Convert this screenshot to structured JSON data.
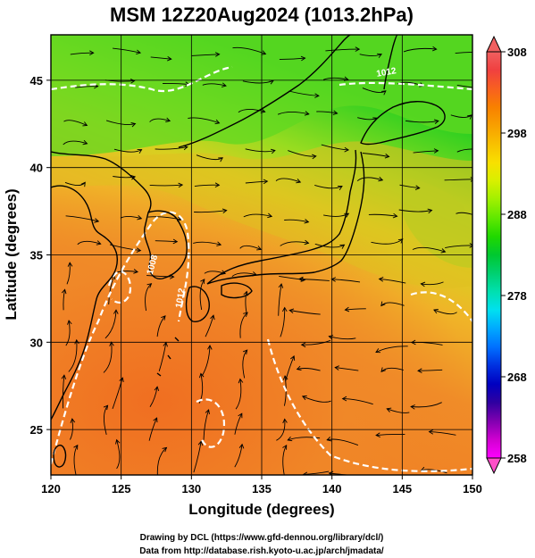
{
  "title": "MSM 12Z20Aug2024 (1013.2hPa)",
  "x_axis": {
    "label": "Longitude (degrees)",
    "range": [
      120,
      150
    ],
    "ticks": [
      {
        "v": 120,
        "t": "120"
      },
      {
        "v": 125,
        "t": "125"
      },
      {
        "v": 130,
        "t": "130"
      },
      {
        "v": 135,
        "t": "135"
      },
      {
        "v": 140,
        "t": "140"
      },
      {
        "v": 145,
        "t": "145"
      },
      {
        "v": 150,
        "t": "150"
      }
    ]
  },
  "y_axis": {
    "label": "Latitude  (degrees)",
    "range": [
      22.4,
      47.6
    ],
    "ticks": [
      {
        "v": 25,
        "t": "25"
      },
      {
        "v": 30,
        "t": "30"
      },
      {
        "v": 35,
        "t": "35"
      },
      {
        "v": 40,
        "t": "40"
      },
      {
        "v": 45,
        "t": "45"
      }
    ]
  },
  "colorbar": {
    "min": 258,
    "max": 308,
    "labels": [
      {
        "v": 308,
        "t": "308"
      },
      {
        "v": 298,
        "t": "298"
      },
      {
        "v": 288,
        "t": "288"
      },
      {
        "v": 278,
        "t": "278"
      },
      {
        "v": 268,
        "t": "268"
      },
      {
        "v": 258,
        "t": "258"
      }
    ],
    "stops": [
      "#ff00ff",
      "#d000d0",
      "#8000b0",
      "#3000a0",
      "#0000c0",
      "#0030e0",
      "#0070ff",
      "#00a8ff",
      "#00e0f0",
      "#00e0b0",
      "#00d070",
      "#00c830",
      "#20d800",
      "#60e800",
      "#a0f000",
      "#d8f000",
      "#f8e000",
      "#f8c000",
      "#f8a000",
      "#f88000",
      "#f86020",
      "#f04040",
      "#f06060"
    ],
    "low_arrow_color": "#ff50c8",
    "high_arrow_color": "#f06060"
  },
  "contour_labels": [
    {
      "text": "1008",
      "lon": 127.4,
      "lat": 34.4,
      "rot": -75
    },
    {
      "text": "1012",
      "lon": 129.4,
      "lat": 32.5,
      "rot": -80
    },
    {
      "text": "1012",
      "lon": 143.9,
      "lat": 45.3,
      "rot": -10
    }
  ],
  "credits": {
    "line1": "Drawing by DCL (https://www.gfd-dennou.org/library/dcl/)",
    "line2": "Data from http://database.rish.kyoto-u.ac.jp/arch/jmadata/"
  },
  "colors": {
    "warm": "#f07828",
    "mid": "#f0b020",
    "cool": "#70d820",
    "coast": "#000000",
    "isobar": "#ffffff"
  }
}
